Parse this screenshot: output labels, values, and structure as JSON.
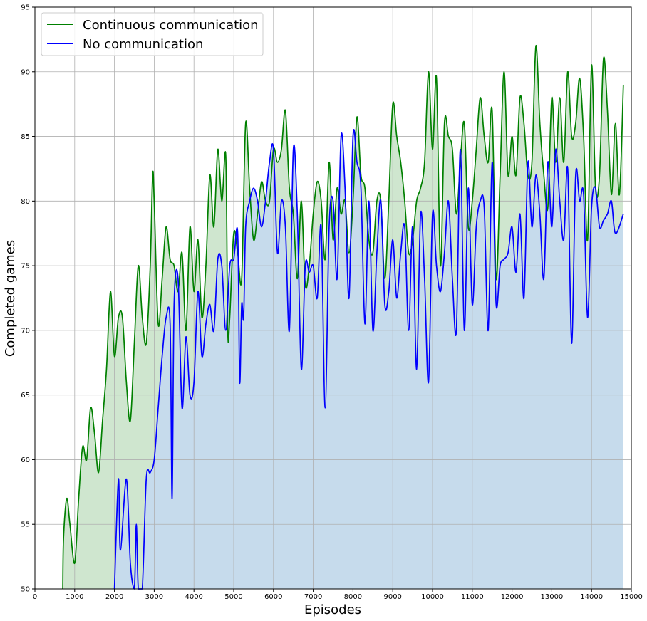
{
  "chart_data": {
    "type": "area",
    "title": "",
    "xlabel": "Episodes",
    "ylabel": "Completed games",
    "xlim": [
      0,
      15000
    ],
    "ylim": [
      50,
      95
    ],
    "xticks": [
      0,
      1000,
      2000,
      3000,
      4000,
      5000,
      6000,
      7000,
      8000,
      9000,
      10000,
      11000,
      12000,
      13000,
      14000,
      15000
    ],
    "yticks": [
      50,
      55,
      60,
      65,
      70,
      75,
      80,
      85,
      90,
      95
    ],
    "grid": true,
    "legend_position": "top-left",
    "series": [
      {
        "name": "Continuous communication",
        "color": "#008000",
        "fill": "#cfe6cf",
        "points": [
          [
            700,
            50
          ],
          [
            720,
            54
          ],
          [
            800,
            57
          ],
          [
            880,
            55
          ],
          [
            1000,
            52
          ],
          [
            1100,
            57
          ],
          [
            1200,
            61
          ],
          [
            1300,
            60
          ],
          [
            1400,
            64
          ],
          [
            1500,
            62
          ],
          [
            1600,
            59
          ],
          [
            1700,
            63
          ],
          [
            1800,
            67
          ],
          [
            1900,
            73
          ],
          [
            2000,
            68
          ],
          [
            2100,
            71
          ],
          [
            2200,
            71
          ],
          [
            2300,
            66
          ],
          [
            2400,
            63
          ],
          [
            2500,
            69
          ],
          [
            2600,
            75
          ],
          [
            2700,
            71
          ],
          [
            2800,
            69
          ],
          [
            2900,
            75
          ],
          [
            2960,
            82
          ],
          [
            3000,
            80
          ],
          [
            3100,
            70.5
          ],
          [
            3200,
            74
          ],
          [
            3300,
            78
          ],
          [
            3400,
            75.5
          ],
          [
            3500,
            75
          ],
          [
            3600,
            73
          ],
          [
            3700,
            76
          ],
          [
            3800,
            70
          ],
          [
            3900,
            78
          ],
          [
            4000,
            73
          ],
          [
            4100,
            77
          ],
          [
            4200,
            71
          ],
          [
            4300,
            75
          ],
          [
            4400,
            82
          ],
          [
            4500,
            78
          ],
          [
            4600,
            84
          ],
          [
            4700,
            80
          ],
          [
            4800,
            83.5
          ],
          [
            4850,
            70
          ],
          [
            4900,
            71
          ],
          [
            5000,
            77.5
          ],
          [
            5100,
            76
          ],
          [
            5200,
            74
          ],
          [
            5300,
            86
          ],
          [
            5400,
            81
          ],
          [
            5500,
            77
          ],
          [
            5600,
            79
          ],
          [
            5700,
            81.5
          ],
          [
            5800,
            80
          ],
          [
            5900,
            80
          ],
          [
            6000,
            84
          ],
          [
            6100,
            83
          ],
          [
            6200,
            84
          ],
          [
            6300,
            87
          ],
          [
            6400,
            81
          ],
          [
            6500,
            79
          ],
          [
            6600,
            74
          ],
          [
            6700,
            80
          ],
          [
            6800,
            73.5
          ],
          [
            6900,
            75
          ],
          [
            7000,
            79
          ],
          [
            7100,
            81.5
          ],
          [
            7200,
            80
          ],
          [
            7300,
            75.5
          ],
          [
            7400,
            83
          ],
          [
            7500,
            77
          ],
          [
            7600,
            81
          ],
          [
            7700,
            79
          ],
          [
            7800,
            80
          ],
          [
            7900,
            76
          ],
          [
            8000,
            80
          ],
          [
            8100,
            86.5
          ],
          [
            8200,
            82
          ],
          [
            8300,
            81
          ],
          [
            8400,
            77
          ],
          [
            8500,
            76
          ],
          [
            8600,
            80
          ],
          [
            8700,
            80
          ],
          [
            8800,
            74
          ],
          [
            8900,
            80
          ],
          [
            9000,
            87.5
          ],
          [
            9100,
            85
          ],
          [
            9200,
            83
          ],
          [
            9300,
            80
          ],
          [
            9400,
            76
          ],
          [
            9500,
            77
          ],
          [
            9600,
            80
          ],
          [
            9700,
            81
          ],
          [
            9800,
            83
          ],
          [
            9900,
            90
          ],
          [
            10000,
            84
          ],
          [
            10100,
            89.5
          ],
          [
            10200,
            75
          ],
          [
            10300,
            86
          ],
          [
            10400,
            85
          ],
          [
            10500,
            84
          ],
          [
            10600,
            79
          ],
          [
            10700,
            83
          ],
          [
            10800,
            86
          ],
          [
            10900,
            78
          ],
          [
            11000,
            80
          ],
          [
            11100,
            84
          ],
          [
            11200,
            88
          ],
          [
            11300,
            85
          ],
          [
            11400,
            83
          ],
          [
            11500,
            87
          ],
          [
            11600,
            74
          ],
          [
            11700,
            82
          ],
          [
            11800,
            90
          ],
          [
            11900,
            82
          ],
          [
            12000,
            85
          ],
          [
            12100,
            82
          ],
          [
            12200,
            88
          ],
          [
            12300,
            86
          ],
          [
            12400,
            82
          ],
          [
            12500,
            83
          ],
          [
            12600,
            92
          ],
          [
            12700,
            86
          ],
          [
            12800,
            82
          ],
          [
            12900,
            79.5
          ],
          [
            13000,
            88
          ],
          [
            13100,
            83
          ],
          [
            13200,
            88
          ],
          [
            13300,
            83
          ],
          [
            13400,
            90
          ],
          [
            13500,
            85
          ],
          [
            13600,
            86
          ],
          [
            13700,
            89.5
          ],
          [
            13800,
            85
          ],
          [
            13900,
            77
          ],
          [
            14000,
            90.5
          ],
          [
            14100,
            81
          ],
          [
            14200,
            82
          ],
          [
            14300,
            91
          ],
          [
            14400,
            87
          ],
          [
            14500,
            80.5
          ],
          [
            14600,
            86
          ],
          [
            14700,
            80.5
          ],
          [
            14800,
            89
          ]
        ]
      },
      {
        "name": "No communication",
        "color": "#0000ff",
        "fill": "#c6dbec",
        "points": [
          [
            2000,
            50
          ],
          [
            2100,
            58.5
          ],
          [
            2150,
            53
          ],
          [
            2300,
            58.5
          ],
          [
            2400,
            52
          ],
          [
            2500,
            50
          ],
          [
            2550,
            55
          ],
          [
            2600,
            50
          ],
          [
            2700,
            50
          ],
          [
            2800,
            58.5
          ],
          [
            2900,
            59
          ],
          [
            3000,
            60
          ],
          [
            3100,
            64
          ],
          [
            3200,
            68
          ],
          [
            3300,
            71
          ],
          [
            3400,
            70.5
          ],
          [
            3450,
            57
          ],
          [
            3500,
            72
          ],
          [
            3600,
            74
          ],
          [
            3700,
            64
          ],
          [
            3800,
            69.5
          ],
          [
            3900,
            65
          ],
          [
            4000,
            66
          ],
          [
            4100,
            73
          ],
          [
            4200,
            68
          ],
          [
            4300,
            70.5
          ],
          [
            4400,
            72
          ],
          [
            4500,
            70
          ],
          [
            4600,
            75.5
          ],
          [
            4700,
            75
          ],
          [
            4800,
            70
          ],
          [
            4900,
            75
          ],
          [
            5000,
            75.5
          ],
          [
            5100,
            77.5
          ],
          [
            5150,
            66
          ],
          [
            5200,
            72
          ],
          [
            5250,
            71
          ],
          [
            5300,
            78
          ],
          [
            5400,
            80
          ],
          [
            5500,
            81
          ],
          [
            5600,
            80
          ],
          [
            5700,
            78
          ],
          [
            5800,
            80
          ],
          [
            5900,
            83
          ],
          [
            6000,
            84
          ],
          [
            6100,
            76
          ],
          [
            6200,
            80
          ],
          [
            6300,
            78
          ],
          [
            6400,
            70
          ],
          [
            6500,
            84
          ],
          [
            6600,
            79
          ],
          [
            6700,
            67
          ],
          [
            6800,
            75
          ],
          [
            6900,
            74.5
          ],
          [
            7000,
            75
          ],
          [
            7100,
            72.5
          ],
          [
            7200,
            78
          ],
          [
            7300,
            64
          ],
          [
            7400,
            78
          ],
          [
            7500,
            80
          ],
          [
            7600,
            74
          ],
          [
            7700,
            85
          ],
          [
            7800,
            81
          ],
          [
            7900,
            72.5
          ],
          [
            8000,
            85
          ],
          [
            8100,
            83
          ],
          [
            8200,
            81
          ],
          [
            8300,
            70.5
          ],
          [
            8400,
            80
          ],
          [
            8500,
            70
          ],
          [
            8600,
            76
          ],
          [
            8700,
            80
          ],
          [
            8800,
            72
          ],
          [
            8900,
            73
          ],
          [
            9000,
            77
          ],
          [
            9100,
            72.5
          ],
          [
            9200,
            76
          ],
          [
            9300,
            78
          ],
          [
            9400,
            70
          ],
          [
            9500,
            78
          ],
          [
            9600,
            67
          ],
          [
            9700,
            79
          ],
          [
            9800,
            74
          ],
          [
            9900,
            66
          ],
          [
            10000,
            79
          ],
          [
            10100,
            75
          ],
          [
            10200,
            73
          ],
          [
            10300,
            76
          ],
          [
            10400,
            80
          ],
          [
            10500,
            74
          ],
          [
            10600,
            70
          ],
          [
            10700,
            84
          ],
          [
            10800,
            70
          ],
          [
            10900,
            81
          ],
          [
            11000,
            72
          ],
          [
            11100,
            78
          ],
          [
            11200,
            80
          ],
          [
            11300,
            79.5
          ],
          [
            11400,
            70
          ],
          [
            11500,
            83
          ],
          [
            11600,
            72
          ],
          [
            11700,
            75
          ],
          [
            11800,
            75.5
          ],
          [
            11900,
            76
          ],
          [
            12000,
            78
          ],
          [
            12100,
            74.5
          ],
          [
            12200,
            79
          ],
          [
            12300,
            72.5
          ],
          [
            12400,
            83
          ],
          [
            12500,
            78
          ],
          [
            12600,
            82
          ],
          [
            12700,
            79
          ],
          [
            12800,
            74
          ],
          [
            12900,
            83
          ],
          [
            13000,
            78
          ],
          [
            13100,
            84
          ],
          [
            13200,
            80
          ],
          [
            13300,
            77
          ],
          [
            13400,
            82.5
          ],
          [
            13500,
            69
          ],
          [
            13600,
            82
          ],
          [
            13700,
            80
          ],
          [
            13800,
            80.5
          ],
          [
            13900,
            71
          ],
          [
            14000,
            79.5
          ],
          [
            14100,
            81
          ],
          [
            14200,
            78
          ],
          [
            14300,
            78.5
          ],
          [
            14400,
            79
          ],
          [
            14500,
            80
          ],
          [
            14600,
            77.5
          ],
          [
            14800,
            79
          ]
        ]
      }
    ]
  }
}
